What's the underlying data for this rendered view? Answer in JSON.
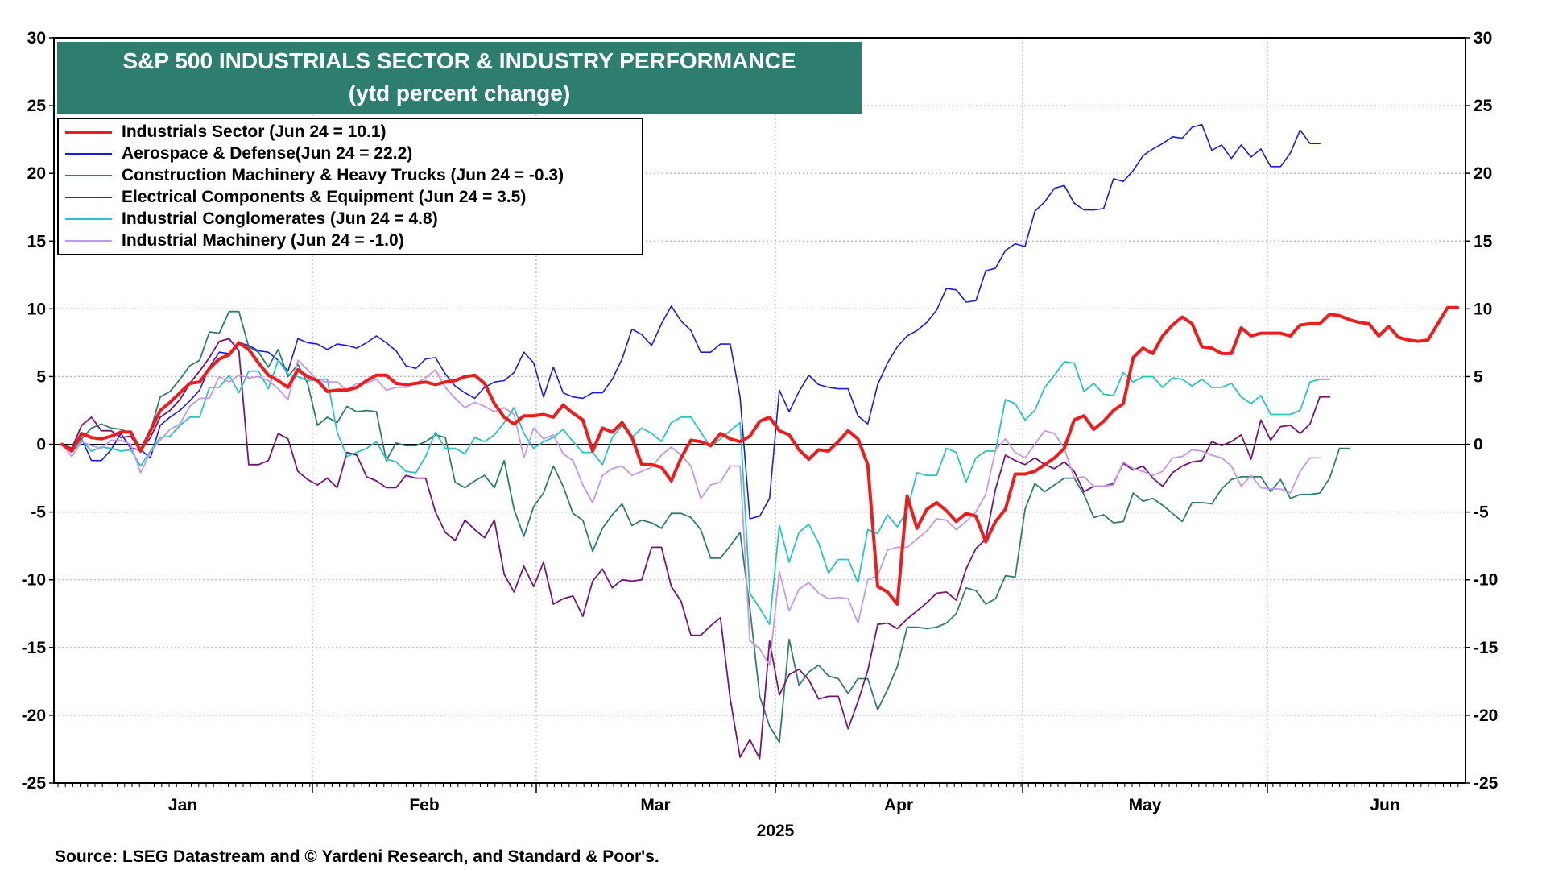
{
  "chart_data": {
    "type": "line",
    "title": "S&P 500 INDUSTRIALS SECTOR & INDUSTRY PERFORMANCE",
    "subtitle": "(ytd percent change)",
    "year_label": "2025",
    "ylim": [
      -25,
      30
    ],
    "yticks": [
      30,
      25,
      20,
      15,
      10,
      5,
      0,
      -5,
      -10,
      -15,
      -20,
      -25
    ],
    "months": [
      "Jan",
      "Feb",
      "Mar",
      "Apr",
      "May",
      "Jun"
    ],
    "grid": "dotted",
    "legend_position": "top-left",
    "source": "Source: LSEG Datastream and © Yardeni Research, and Standard & Poor's.",
    "series": [
      {
        "name": "Industrials Sector (Jun 24 = 10.1)",
        "color": "#ee1c1c",
        "width": 4,
        "values": [
          0.0,
          -0.5,
          0.8,
          0.5,
          0.4,
          0.6,
          0.9,
          0.9,
          -0.5,
          1.0,
          2.5,
          3.1,
          3.8,
          4.5,
          4.6,
          5.6,
          6.3,
          6.6,
          7.5,
          7.0,
          6.0,
          5.1,
          4.7,
          4.2,
          5.5,
          5.0,
          4.7,
          3.9,
          4.0,
          4.0,
          4.2,
          4.7,
          5.1,
          5.1,
          4.5,
          4.4,
          4.5,
          4.6,
          4.4,
          4.6,
          4.7,
          5.0,
          5.1,
          4.5,
          3.0,
          2.0,
          1.5,
          2.1,
          2.1,
          2.2,
          2.0,
          2.9,
          2.3,
          1.8,
          -0.5,
          1.2,
          0.9,
          1.6,
          0.5,
          -1.5,
          -1.5,
          -1.7,
          -2.7,
          -1.0,
          0.3,
          0.2,
          -0.1,
          0.8,
          0.4,
          0.2,
          0.6,
          1.7,
          2.0,
          1.0,
          0.7,
          -0.4,
          -1.1,
          -0.4,
          -0.5,
          0.2,
          1.0,
          0.4,
          -1.5,
          -10.5,
          -10.9,
          -11.8,
          -3.8,
          -6.2,
          -4.8,
          -4.3,
          -4.9,
          -5.7,
          -5.1,
          -5.3,
          -7.2,
          -5.7,
          -4.8,
          -2.2,
          -2.2,
          -2.0,
          -1.5,
          -1.0,
          -0.3,
          1.8,
          2.1,
          1.1,
          1.7,
          2.5,
          3.0,
          6.4,
          7.1,
          6.7,
          8.0,
          8.8,
          9.4,
          8.9,
          7.2,
          7.1,
          6.7,
          6.7,
          8.6,
          8.0,
          8.2,
          8.2,
          8.2,
          8.0,
          8.8,
          8.9,
          8.9,
          9.6,
          9.5,
          9.2,
          9.0,
          8.9,
          8.0,
          8.7,
          7.9,
          7.7,
          7.6,
          7.7,
          8.9,
          10.1,
          10.1
        ]
      },
      {
        "name": "Aerospace & Defense(Jun 24 = 22.2)",
        "color": "#1a1ae6",
        "width": 1.6,
        "values": [
          0.0,
          -0.3,
          0.4,
          -1.2,
          -1.2,
          -0.4,
          0.8,
          -0.3,
          -0.4,
          -1.0,
          1.4,
          2.0,
          2.5,
          3.2,
          4.0,
          5.7,
          6.8,
          6.7,
          7.5,
          7.3,
          6.9,
          6.8,
          6.2,
          5.4,
          7.8,
          7.5,
          7.4,
          7.0,
          7.4,
          7.3,
          7.1,
          7.5,
          8.0,
          7.5,
          6.9,
          5.8,
          5.6,
          6.3,
          6.4,
          5.2,
          4.3,
          3.8,
          3.4,
          4.2,
          4.6,
          4.7,
          5.3,
          6.8,
          6.0,
          3.5,
          5.7,
          3.8,
          3.5,
          3.4,
          3.8,
          3.8,
          4.8,
          6.3,
          8.5,
          8.1,
          7.3,
          8.9,
          10.2,
          9.1,
          8.4,
          6.8,
          6.8,
          7.4,
          7.4,
          3.5,
          -5.5,
          -5.3,
          -4.0,
          4.0,
          2.4,
          3.9,
          5.1,
          4.4,
          4.2,
          4.1,
          4.1,
          2.1,
          1.5,
          4.4,
          6.0,
          7.2,
          8.0,
          8.4,
          9.0,
          9.9,
          11.5,
          11.4,
          10.5,
          10.6,
          12.8,
          13.0,
          14.3,
          14.8,
          14.6,
          17.2,
          17.9,
          18.9,
          19.1,
          17.8,
          17.3,
          17.3,
          17.4,
          19.6,
          19.4,
          20.2,
          21.3,
          21.8,
          22.2,
          22.7,
          22.6,
          23.4,
          23.6,
          21.7,
          22.1,
          21.1,
          22.1,
          21.2,
          21.8,
          20.5,
          20.5,
          21.5,
          23.2,
          22.2,
          22.2
        ]
      },
      {
        "name": "Construction Machinery & Heavy Trucks (Jun 24 = -0.3)",
        "color": "#2e7e6f",
        "width": 1.8,
        "values": [
          0.0,
          -0.3,
          0.4,
          1.2,
          1.5,
          1.2,
          1.1,
          0.8,
          -0.4,
          1.0,
          3.5,
          3.9,
          4.8,
          5.8,
          6.2,
          8.3,
          8.2,
          9.8,
          9.8,
          7.2,
          6.8,
          5.7,
          7.0,
          5.0,
          5.9,
          4.5,
          1.4,
          2.0,
          1.6,
          2.8,
          2.4,
          2.5,
          2.4,
          -1.2,
          0.1,
          -0.1,
          -0.1,
          0.2,
          0.7,
          0.5,
          -2.8,
          -3.2,
          -2.7,
          -2.3,
          -3.2,
          -1.2,
          -4.8,
          -6.8,
          -4.6,
          -3.6,
          -1.6,
          -3.1,
          -5.1,
          -5.6,
          -7.9,
          -6.2,
          -5.2,
          -4.4,
          -6.0,
          -5.6,
          -5.8,
          -6.2,
          -5.1,
          -5.1,
          -5.4,
          -6.3,
          -8.4,
          -8.4,
          -7.5,
          -6.5,
          -12.1,
          -18.6,
          -20.8,
          -22.0,
          -14.4,
          -17.8,
          -16.8,
          -16.3,
          -17.1,
          -17.3,
          -18.4,
          -17.3,
          -17.3,
          -19.6,
          -18.1,
          -16.4,
          -13.5,
          -13.5,
          -13.6,
          -13.5,
          -13.2,
          -12.5,
          -10.6,
          -10.8,
          -11.8,
          -11.4,
          -9.7,
          -9.8,
          -4.8,
          -2.9,
          -3.5,
          -3.0,
          -2.5,
          -2.5,
          -3.7,
          -5.4,
          -5.2,
          -5.8,
          -5.7,
          -3.6,
          -4.2,
          -4.0,
          -4.5,
          -5.1,
          -5.7,
          -4.3,
          -4.3,
          -4.4,
          -3.3,
          -2.6,
          -2.4,
          -2.4,
          -2.4,
          -3.5,
          -2.6,
          -4.0,
          -3.7,
          -3.7,
          -3.6,
          -2.5,
          -0.3,
          -0.3
        ]
      },
      {
        "name": "Electrical Components & Equipment (Jun 24 = 3.5)",
        "color": "#7a1378",
        "width": 1.8,
        "values": [
          0.0,
          -0.3,
          1.4,
          2.0,
          1.0,
          1.0,
          0.5,
          0.6,
          -0.5,
          0.5,
          2.0,
          2.5,
          3.3,
          4.5,
          5.4,
          6.4,
          7.6,
          7.8,
          6.9,
          -1.5,
          -1.5,
          -1.2,
          0.8,
          0.4,
          -2.0,
          -2.6,
          -3.0,
          -2.5,
          -3.2,
          -0.6,
          -0.8,
          -2.4,
          -2.7,
          -3.2,
          -3.2,
          -2.3,
          -2.5,
          -2.5,
          -5.0,
          -6.5,
          -7.1,
          -5.6,
          -6.3,
          -6.9,
          -5.6,
          -9.6,
          -10.9,
          -9.0,
          -10.5,
          -8.7,
          -11.8,
          -11.4,
          -11.2,
          -12.7,
          -10.1,
          -9.2,
          -10.6,
          -10.0,
          -10.1,
          -10.0,
          -7.6,
          -7.6,
          -10.5,
          -11.6,
          -14.1,
          -14.1,
          -13.4,
          -12.8,
          -18.8,
          -23.1,
          -21.8,
          -23.2,
          -14.5,
          -18.5,
          -17.0,
          -16.6,
          -17.4,
          -18.8,
          -18.6,
          -18.6,
          -21.0,
          -19.0,
          -16.7,
          -13.3,
          -13.2,
          -13.6,
          -12.9,
          -12.3,
          -11.7,
          -11.0,
          -10.9,
          -11.5,
          -9.2,
          -7.7,
          -7.0,
          -3.3,
          -0.8,
          -1.2,
          -1.5,
          -1.0,
          -1.5,
          -1.8,
          -1.3,
          -2.0,
          -3.5,
          -3.1,
          -3.1,
          -2.9,
          -1.4,
          -1.9,
          -1.6,
          -2.5,
          -3.1,
          -2.1,
          -1.6,
          -1.3,
          -1.2,
          0.2,
          -0.1,
          0.2,
          0.7,
          -1.1,
          1.8,
          0.3,
          1.3,
          1.4,
          0.8,
          1.5,
          3.5,
          3.5
        ]
      },
      {
        "name": "Industrial Conglomerates (Jun 24 = 4.8)",
        "color": "#27c4c4",
        "width": 1.8,
        "values": [
          0.0,
          -0.6,
          0.3,
          -0.5,
          -0.2,
          -0.3,
          -0.5,
          -0.4,
          -1.6,
          -0.5,
          0.5,
          0.6,
          1.4,
          2.0,
          2.0,
          4.2,
          4.2,
          5.1,
          3.8,
          5.4,
          5.4,
          4.1,
          6.2,
          5.2,
          5.0,
          4.7,
          4.8,
          4.8,
          0.9,
          -0.9,
          -0.6,
          -0.3,
          0.2,
          -1.1,
          -1.3,
          -2.0,
          -2.1,
          -0.9,
          0.9,
          -0.3,
          -0.3,
          -0.7,
          0.5,
          0.2,
          0.7,
          1.6,
          2.7,
          0.8,
          -0.3,
          0.2,
          0.5,
          1.1,
          0.2,
          -0.6,
          -0.6,
          -1.5,
          0.5,
          1.4,
          0.5,
          1.2,
          0.8,
          0.2,
          1.6,
          2.0,
          2.0,
          0.9,
          -0.2,
          0.4,
          1.0,
          1.6,
          -11.0,
          -12.1,
          -13.3,
          -6.0,
          -8.7,
          -6.5,
          -5.9,
          -7.3,
          -9.5,
          -8.5,
          -8.5,
          -10.2,
          -6.3,
          -6.6,
          -5.2,
          -6.1,
          -4.9,
          -2.1,
          -2.3,
          -2.3,
          -0.3,
          -0.6,
          -2.8,
          -1.0,
          -0.5,
          -0.5,
          3.3,
          3.0,
          1.8,
          2.5,
          4.2,
          5.1,
          6.1,
          6.0,
          3.9,
          4.5,
          3.7,
          3.6,
          5.3,
          4.6,
          5.0,
          5.0,
          4.2,
          4.9,
          4.8,
          4.3,
          4.8,
          4.2,
          4.2,
          4.5,
          3.5,
          3.0,
          3.6,
          2.2,
          2.2,
          2.2,
          2.5,
          4.6,
          4.8,
          4.8
        ]
      },
      {
        "name": "Industrial Machinery (Jun 24 = -1.0)",
        "color": "#c496f0",
        "width": 1.8,
        "values": [
          0.0,
          -0.9,
          0.2,
          -0.1,
          -0.3,
          0.3,
          0.3,
          0.0,
          -2.1,
          -0.6,
          0.3,
          1.1,
          1.5,
          2.8,
          3.4,
          3.4,
          5.0,
          4.6,
          5.1,
          4.9,
          5.0,
          4.7,
          4.1,
          3.3,
          6.2,
          5.5,
          4.7,
          4.6,
          4.6,
          4.0,
          4.5,
          4.5,
          4.8,
          4.0,
          4.2,
          4.2,
          4.5,
          4.9,
          5.5,
          4.2,
          3.4,
          2.7,
          3.1,
          2.8,
          2.4,
          2.7,
          2.2,
          -1.0,
          1.2,
          0.4,
          0.7,
          -0.7,
          -1.2,
          -3.0,
          -4.3,
          -2.3,
          -1.8,
          -1.6,
          -2.3,
          -2.0,
          -1.7,
          -0.8,
          -0.2,
          -0.8,
          -1.6,
          -4.0,
          -3.0,
          -2.8,
          -1.6,
          -1.6,
          -14.5,
          -15.1,
          -16.3,
          -9.4,
          -12.3,
          -10.7,
          -10.2,
          -11.0,
          -11.4,
          -11.3,
          -11.4,
          -13.2,
          -10.0,
          -9.7,
          -7.8,
          -7.6,
          -7.6,
          -7.0,
          -6.4,
          -5.5,
          -5.6,
          -6.3,
          -5.7,
          -5.0,
          -3.7,
          -0.4,
          0.4,
          -0.6,
          -1.0,
          0.0,
          1.0,
          0.8,
          -0.3,
          -2.5,
          -2.4,
          -3.1,
          -3.1,
          -3.0,
          -1.3,
          -1.8,
          -2.0,
          -2.3,
          -2.0,
          -1.0,
          -0.9,
          -0.4,
          -0.5,
          -0.8,
          -1.0,
          -1.6,
          -3.1,
          -2.3,
          -3.2,
          -3.3,
          -3.3,
          -3.6,
          -2.0,
          -1.0,
          -1.0
        ]
      }
    ]
  }
}
